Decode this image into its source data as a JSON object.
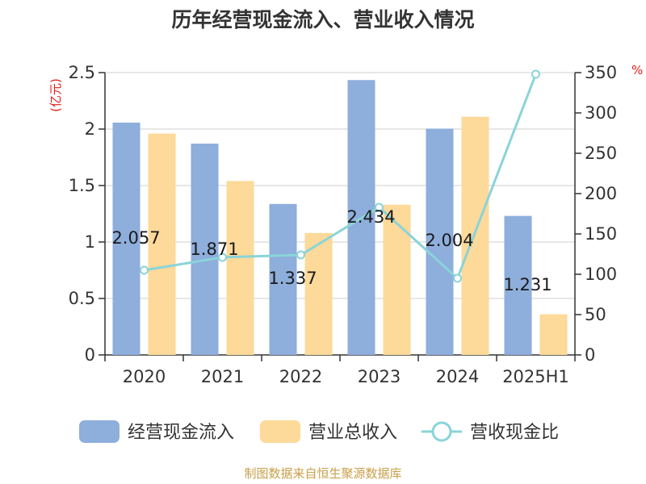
{
  "chart_data": {
    "type": "bar",
    "title": "历年经营现金流入、营业收入情况",
    "left_unit": "(亿元)",
    "right_unit": "%",
    "categories": [
      "2020",
      "2021",
      "2022",
      "2023",
      "2024",
      "2025H1"
    ],
    "y_left": {
      "range": [
        0,
        2.5
      ],
      "ticks": [
        "0",
        "0.5",
        "1",
        "1.5",
        "2",
        "2.5"
      ],
      "tick_values": [
        0,
        0.5,
        1,
        1.5,
        2,
        2.5
      ]
    },
    "y_right": {
      "range": [
        0,
        350
      ],
      "ticks": [
        "0",
        "50",
        "100",
        "150",
        "200",
        "250",
        "300",
        "350"
      ],
      "tick_values": [
        0,
        50,
        100,
        150,
        200,
        250,
        300,
        350
      ]
    },
    "grid": true,
    "legend_position": "bottom",
    "series": [
      {
        "name": "经营现金流入",
        "kind": "bar",
        "axis": "left",
        "color": "#8eaedc",
        "values": [
          2.057,
          1.871,
          1.337,
          2.434,
          2.004,
          1.231
        ],
        "labels": [
          "2.057",
          "1.871",
          "1.337",
          "2.434",
          "2.004",
          "1.231"
        ]
      },
      {
        "name": "营业总收入",
        "kind": "bar",
        "axis": "left",
        "color": "#fdd99a",
        "values": [
          1.96,
          1.54,
          1.08,
          1.33,
          2.11,
          0.36
        ]
      },
      {
        "name": "营收现金比",
        "kind": "line",
        "axis": "right",
        "color": "#8ad4d8",
        "values": [
          105,
          121,
          124,
          183,
          95,
          348
        ]
      }
    ]
  },
  "source": "制图数据来自恒生聚源数据库"
}
